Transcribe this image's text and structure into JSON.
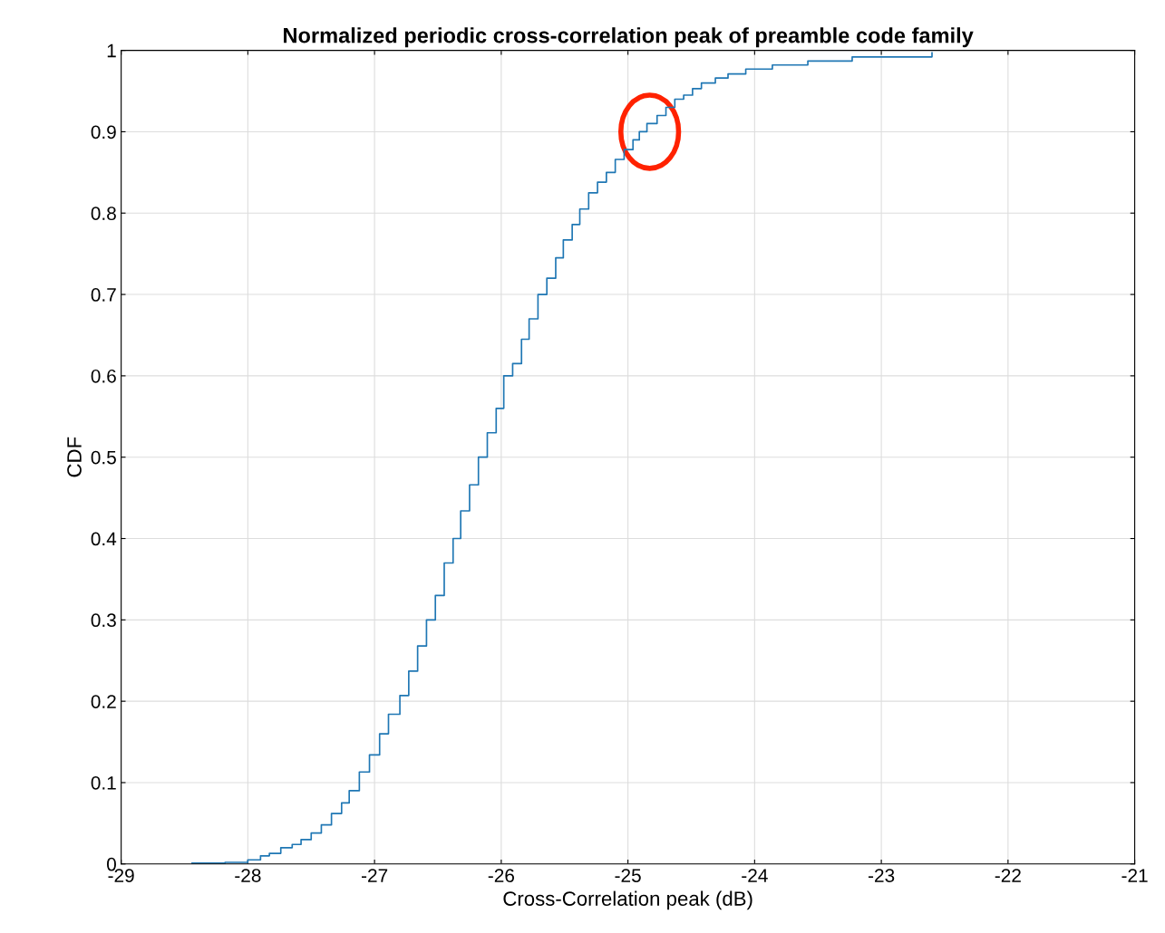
{
  "chart_data": {
    "type": "step",
    "title": "Normalized periodic cross-correlation peak of preamble code family",
    "xlabel": "Cross-Correlation peak (dB)",
    "ylabel": "CDF",
    "x": [
      -28.44,
      -28.18,
      -28.0,
      -27.9,
      -27.83,
      -27.74,
      -27.65,
      -27.58,
      -27.5,
      -27.42,
      -27.34,
      -27.26,
      -27.2,
      -27.12,
      -27.04,
      -26.96,
      -26.89,
      -26.8,
      -26.73,
      -26.66,
      -26.59,
      -26.52,
      -26.45,
      -26.38,
      -26.32,
      -26.25,
      -26.18,
      -26.11,
      -26.04,
      -25.98,
      -25.91,
      -25.84,
      -25.78,
      -25.71,
      -25.64,
      -25.57,
      -25.51,
      -25.44,
      -25.38,
      -25.31,
      -25.24,
      -25.17,
      -25.1,
      -25.03,
      -24.96,
      -24.91,
      -24.85,
      -24.77,
      -24.7,
      -24.63,
      -24.56,
      -24.49,
      -24.42,
      -24.31,
      -24.21,
      -24.07,
      -23.86,
      -23.58,
      -23.23,
      -22.6
    ],
    "series": [
      {
        "color": "#1f77b4",
        "values": [
          0.001,
          0.002,
          0.005,
          0.01,
          0.013,
          0.02,
          0.024,
          0.03,
          0.038,
          0.048,
          0.062,
          0.075,
          0.09,
          0.113,
          0.134,
          0.16,
          0.184,
          0.207,
          0.237,
          0.268,
          0.3,
          0.33,
          0.37,
          0.4,
          0.434,
          0.466,
          0.5,
          0.53,
          0.56,
          0.6,
          0.615,
          0.645,
          0.67,
          0.7,
          0.72,
          0.745,
          0.767,
          0.786,
          0.805,
          0.825,
          0.838,
          0.85,
          0.866,
          0.878,
          0.89,
          0.9,
          0.91,
          0.92,
          0.93,
          0.94,
          0.945,
          0.953,
          0.96,
          0.966,
          0.971,
          0.977,
          0.982,
          0.987,
          0.992,
          0.997
        ]
      }
    ],
    "xlim": [
      -29,
      -21
    ],
    "xticks": [
      -29,
      -28,
      -27,
      -26,
      -25,
      -24,
      -23,
      -22,
      -21
    ],
    "ylim": [
      0,
      1
    ],
    "yticks": [
      0,
      0.1,
      0.2,
      0.3,
      0.4,
      0.5,
      0.6,
      0.7,
      0.8,
      0.9,
      1
    ],
    "grid": true,
    "legend": false
  }
}
